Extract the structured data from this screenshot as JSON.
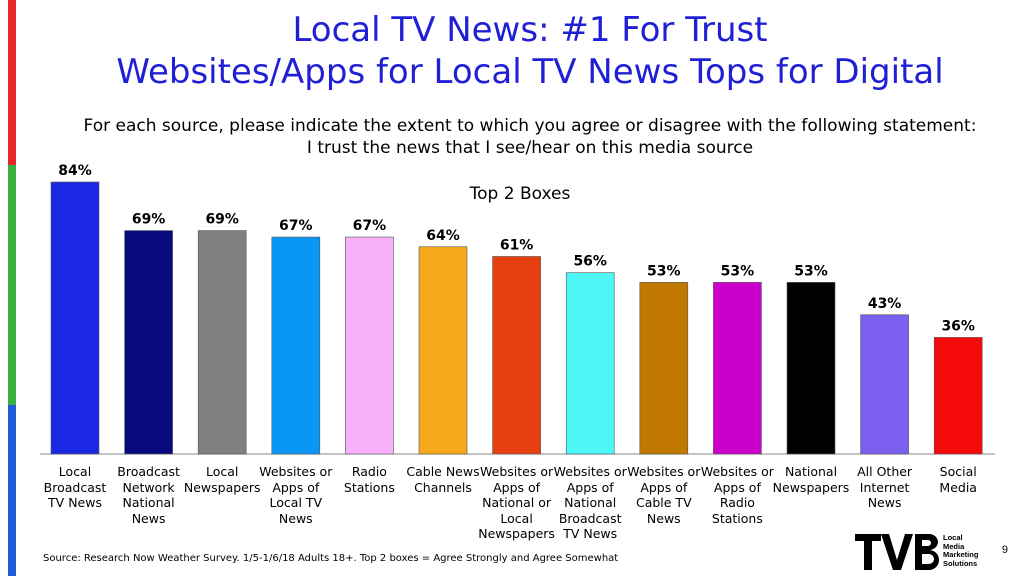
{
  "title_line1": "Local TV News: #1 For Trust",
  "title_line2": "Websites/Apps for Local TV News Tops for Digital",
  "question_line1": "For each source, please indicate the extent to which you agree or disagree with the following statement:",
  "question_line2": "I trust the news that I see/hear on this media source",
  "source_note": "Source: Research Now Weather Survey. 1/5-1/6/18 Adults 18+. Top 2 boxes = Agree Strongly and Agree Somewhat",
  "page_number": "9",
  "logo": {
    "mark": "TVB",
    "tagline": [
      "Local",
      "Media",
      "Marketing",
      "Solutions"
    ]
  },
  "stripe_colors": [
    "#e8262b",
    "#3cb043",
    "#1f5bd6"
  ],
  "chart_data": {
    "type": "bar",
    "title": "Top 2 Boxes",
    "ylim": [
      0,
      100
    ],
    "grid": false,
    "legend": "none",
    "value_suffix": "%",
    "categories": [
      [
        "Local",
        "Broadcast",
        "TV News"
      ],
      [
        "Broadcast",
        "Network",
        "National",
        "News"
      ],
      [
        "Local",
        "Newspapers"
      ],
      [
        "Websites or",
        "Apps of",
        "Local TV",
        "News"
      ],
      [
        "Radio",
        "Stations"
      ],
      [
        "Cable News",
        "Channels"
      ],
      [
        "Websites or",
        "Apps of",
        "National or",
        "Local",
        "Newspapers"
      ],
      [
        "Websites or",
        "Apps of",
        "National",
        "Broadcast",
        "TV News"
      ],
      [
        "Websites or",
        "Apps of",
        "Cable TV",
        "News"
      ],
      [
        "Websites or",
        "Apps of",
        "Radio",
        "Stations"
      ],
      [
        "National",
        "Newspapers"
      ],
      [
        "All Other",
        "Internet",
        "News"
      ],
      [
        "Social Media"
      ]
    ],
    "values": [
      84,
      69,
      69,
      67,
      67,
      64,
      61,
      56,
      53,
      53,
      53,
      43,
      36
    ],
    "colors": [
      "#1a28e6",
      "#0a0a80",
      "#808080",
      "#0a96f5",
      "#f8b0f8",
      "#f7a81b",
      "#e64010",
      "#4df7f5",
      "#c07800",
      "#cc00cc",
      "#000000",
      "#7b60f0",
      "#f50a0a"
    ]
  }
}
